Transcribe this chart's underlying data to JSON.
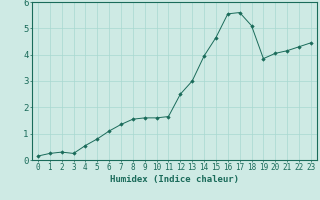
{
  "xlabel": "Humidex (Indice chaleur)",
  "background_color": "#ceeae4",
  "line_color": "#1a6b5a",
  "marker_color": "#1a6b5a",
  "grid_color": "#a8d8d0",
  "x_values": [
    0,
    1,
    2,
    3,
    4,
    5,
    6,
    7,
    8,
    9,
    10,
    11,
    12,
    13,
    14,
    15,
    16,
    17,
    18,
    19,
    20,
    21,
    22,
    23
  ],
  "y_values": [
    0.15,
    0.25,
    0.3,
    0.25,
    0.55,
    0.8,
    1.1,
    1.35,
    1.55,
    1.6,
    1.6,
    1.65,
    2.5,
    3.0,
    3.95,
    4.65,
    5.55,
    5.6,
    5.1,
    3.85,
    4.05,
    4.15,
    4.3,
    4.45
  ],
  "ylim": [
    0,
    6
  ],
  "xlim": [
    -0.5,
    23.5
  ],
  "yticks": [
    0,
    1,
    2,
    3,
    4,
    5,
    6
  ],
  "xticks": [
    0,
    1,
    2,
    3,
    4,
    5,
    6,
    7,
    8,
    9,
    10,
    11,
    12,
    13,
    14,
    15,
    16,
    17,
    18,
    19,
    20,
    21,
    22,
    23
  ],
  "xlabel_fontsize": 6.5,
  "ytick_fontsize": 6.5,
  "xtick_fontsize": 5.5
}
